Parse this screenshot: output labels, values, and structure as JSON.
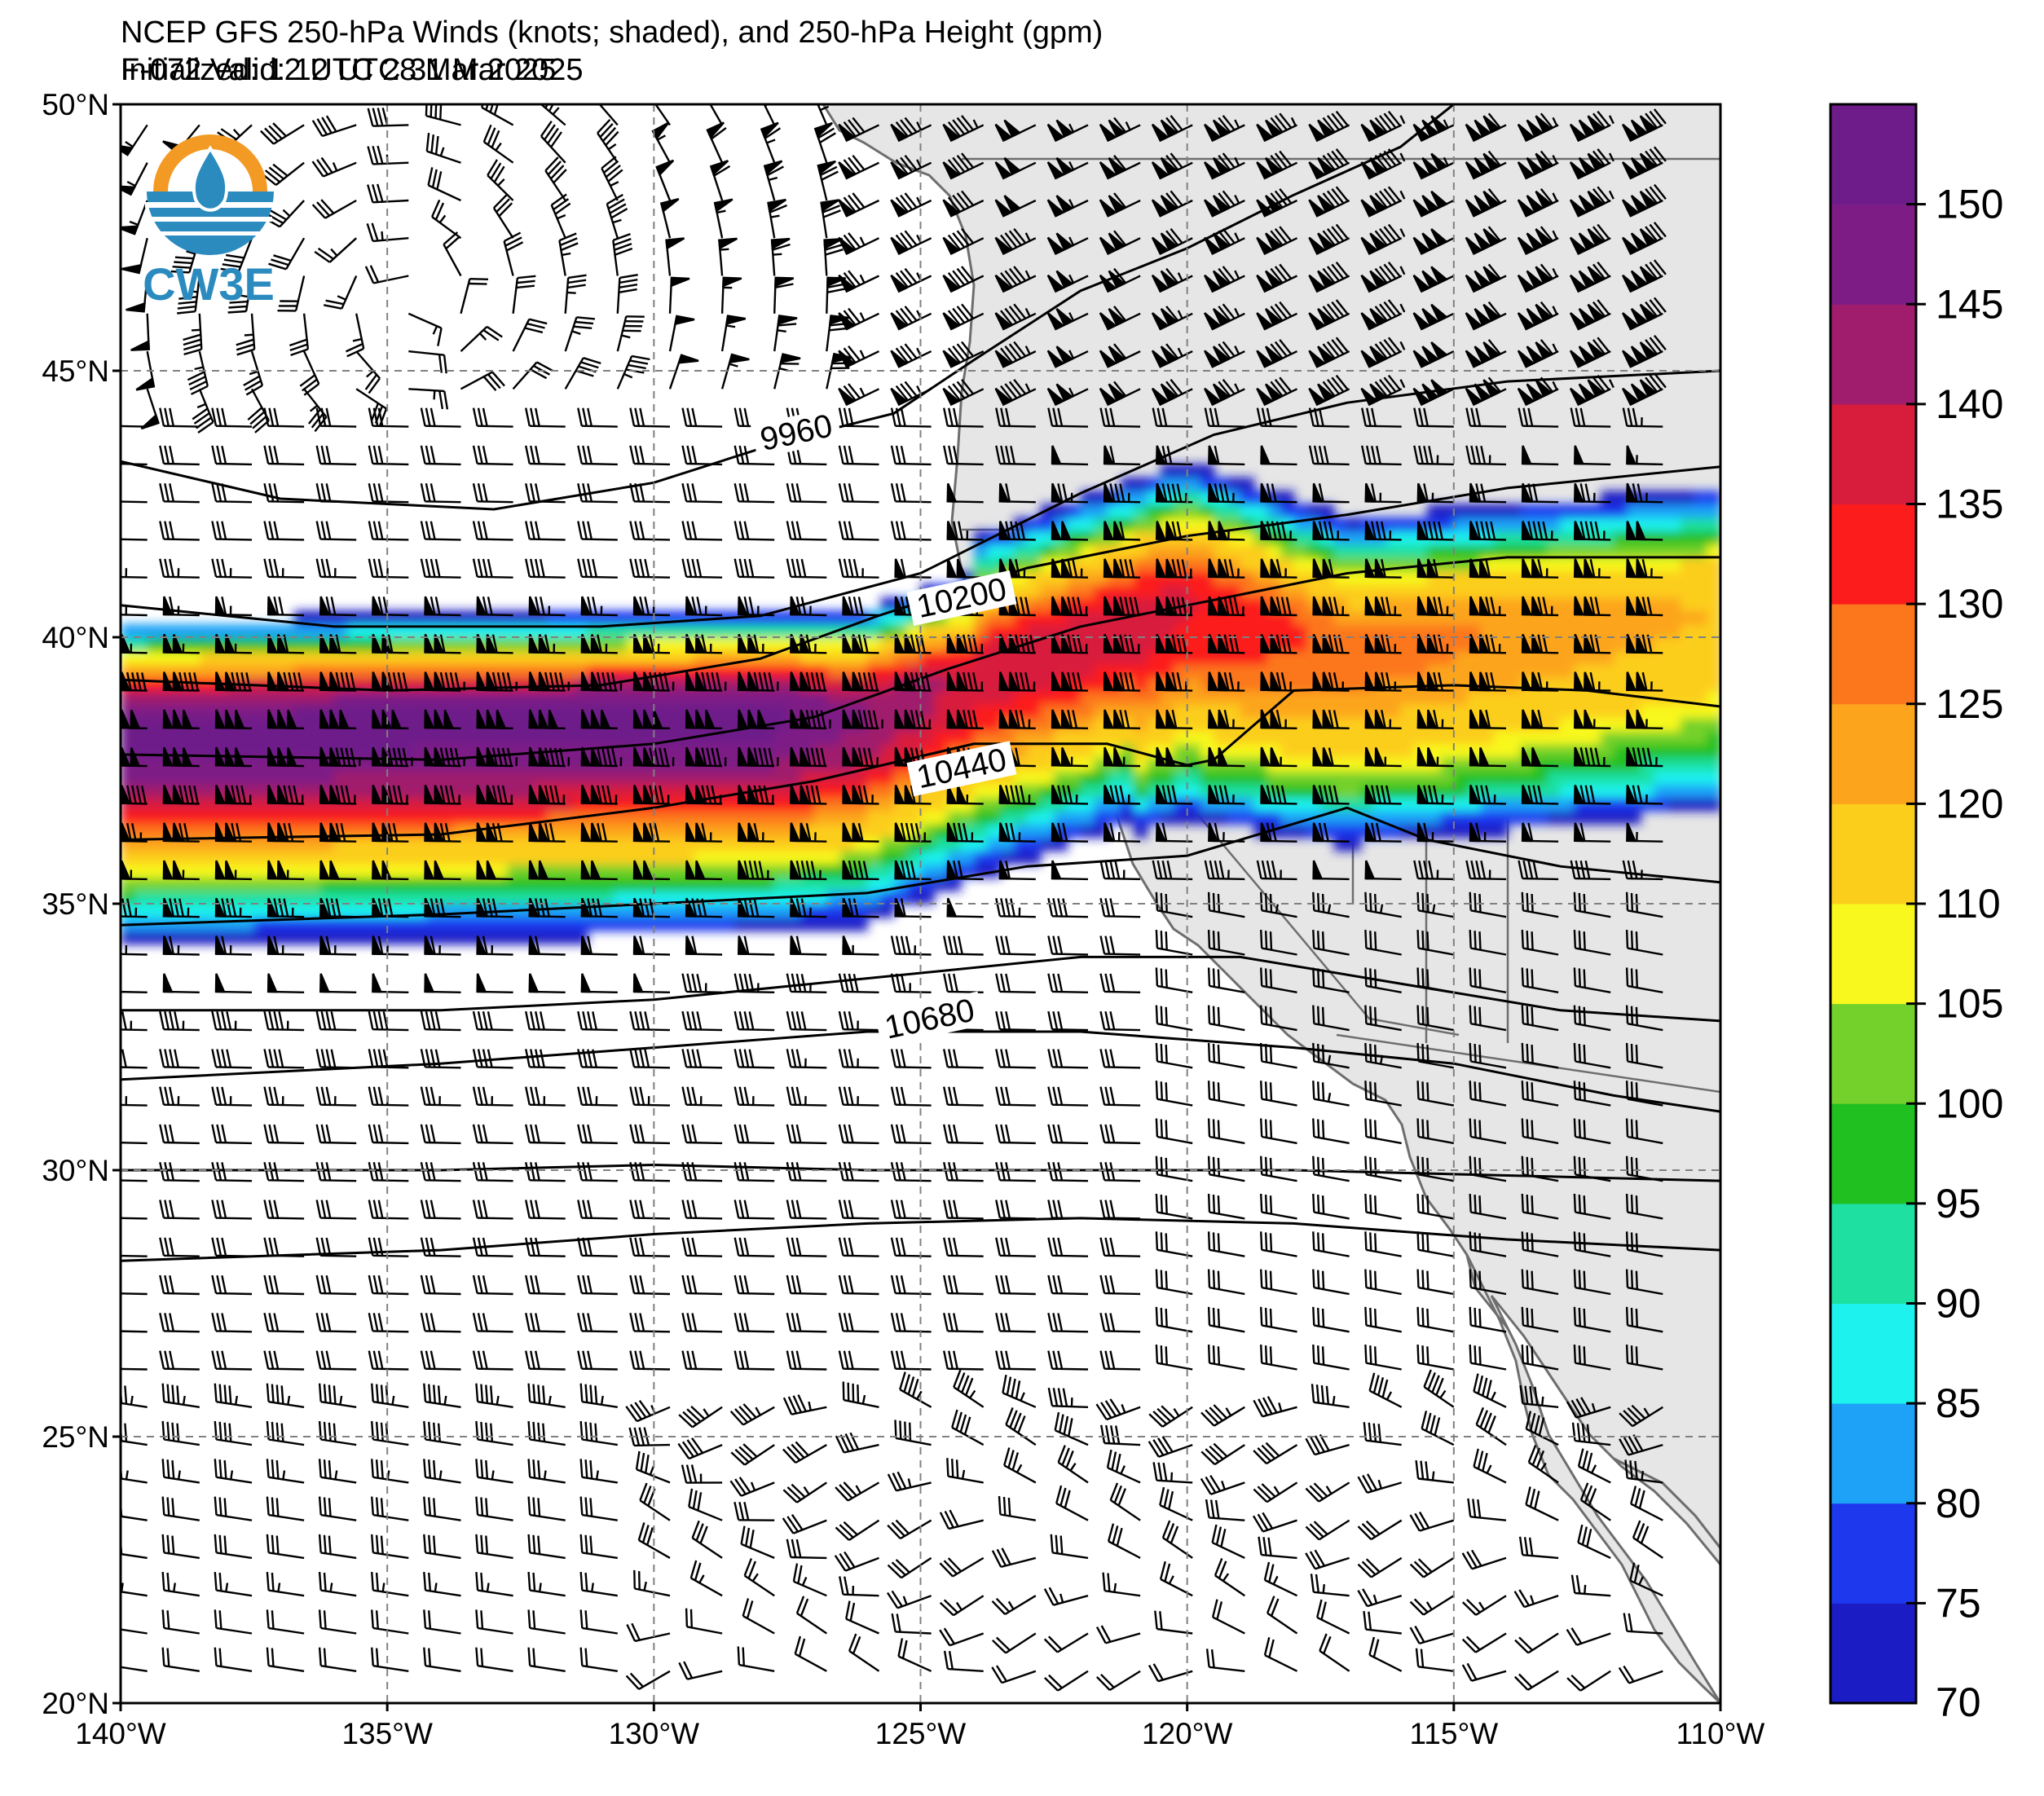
{
  "title_line1": "NCEP GFS 250-hPa Winds (knots; shaded), and 250-hPa Height (gpm)",
  "title_init": "Initialized: 12 UTC 28 Mar 2025",
  "title_valid": "F-072  Valid: 12 UTC 31 Mar 2025",
  "logo_text": "CW3E",
  "map": {
    "lon_range": [
      -140,
      -110
    ],
    "lat_range": [
      20,
      50
    ],
    "lon_ticks": [
      {
        "value": -140,
        "label": "140°W"
      },
      {
        "value": -135,
        "label": "135°W"
      },
      {
        "value": -130,
        "label": "130°W"
      },
      {
        "value": -125,
        "label": "125°W"
      },
      {
        "value": -120,
        "label": "120°W"
      },
      {
        "value": -115,
        "label": "115°W"
      },
      {
        "value": -110,
        "label": "110°W"
      }
    ],
    "lat_ticks": [
      {
        "value": 50,
        "label": "50°N"
      },
      {
        "value": 45,
        "label": "45°N"
      },
      {
        "value": 40,
        "label": "40°N"
      },
      {
        "value": 35,
        "label": "35°N"
      },
      {
        "value": 30,
        "label": "30°N"
      },
      {
        "value": 25,
        "label": "25°N"
      },
      {
        "value": 20,
        "label": "20°N"
      }
    ],
    "gridlines": "dashed",
    "land_color": "#e6e6e6"
  },
  "height_contours": [
    {
      "label": "9960",
      "label_lon": -127.3,
      "label_lat": 43.7
    },
    {
      "label": "10200",
      "label_lon": -124.2,
      "label_lat": 40.6
    },
    {
      "label": "10440",
      "label_lon": -124.2,
      "label_lat": 37.4
    },
    {
      "label": "10680",
      "label_lon": -124.8,
      "label_lat": 32.7
    }
  ],
  "colorbar": {
    "levels": [
      70,
      75,
      80,
      85,
      90,
      95,
      100,
      105,
      110,
      120,
      125,
      130,
      135,
      140,
      145,
      150
    ],
    "colors": [
      "#1c1cc4",
      "#1e38ee",
      "#1ea2f8",
      "#1ef2ee",
      "#1ee0a0",
      "#20c020",
      "#74d12c",
      "#f8f81e",
      "#fcce1c",
      "#fca51c",
      "#fc771c",
      "#fc1c1c",
      "#d81c3c",
      "#a01c6c",
      "#7e1c86",
      "#6e1c8a"
    ],
    "tick_labels": [
      "70",
      "75",
      "80",
      "85",
      "90",
      "95",
      "100",
      "105",
      "110",
      "120",
      "125",
      "130",
      "135",
      "140",
      "145",
      "150"
    ],
    "units": "knots"
  }
}
